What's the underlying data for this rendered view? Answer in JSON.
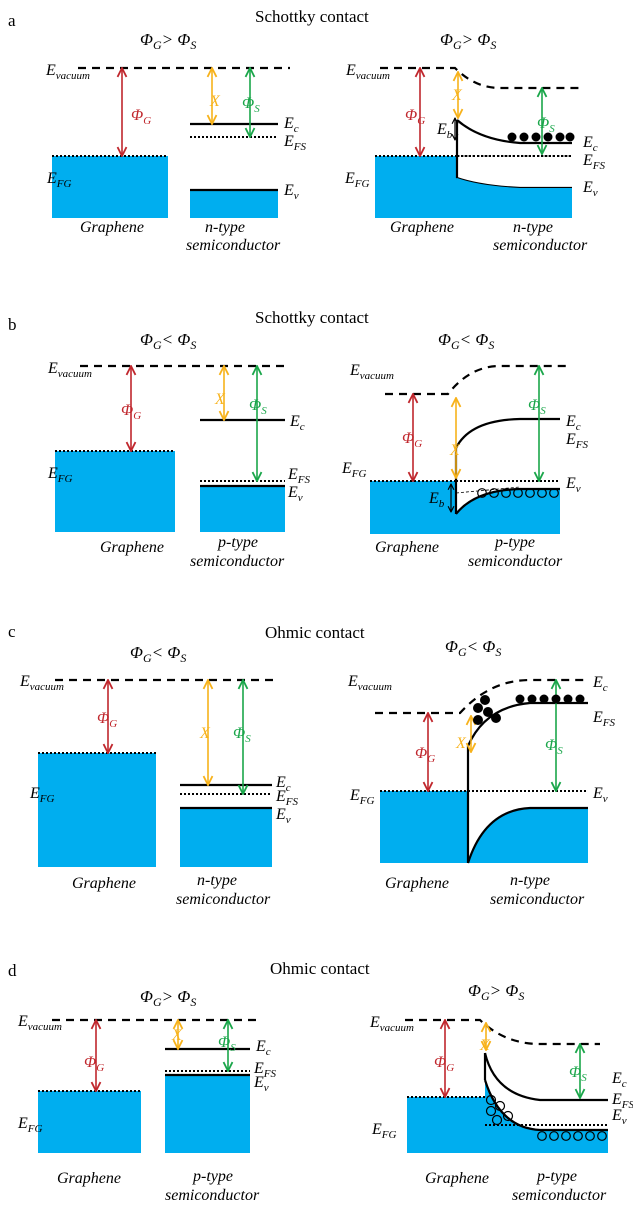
{
  "colors": {
    "band_fill": "#00aeef",
    "phi_g": "#c0272d",
    "chi": "#f7b21b",
    "phi_s": "#1aa64a"
  },
  "labels": {
    "e_vacuum_main": "E",
    "e_vacuum_sub": "vacuum",
    "e_fg_main": "E",
    "e_fg_sub": "FG",
    "e_c_main": "E",
    "e_c_sub": "c",
    "e_fs_main": "E",
    "e_fs_sub": "FS",
    "e_v_main": "E",
    "e_v_sub": "v",
    "e_b_main": "E",
    "e_b_sub": "b",
    "phi_g_main": "Φ",
    "phi_g_sub": "G",
    "phi_s_main": "Φ",
    "phi_s_sub": "S",
    "chi": "X",
    "graphene": "Graphene",
    "semiconductor": "semiconductor",
    "n_type": "n-type",
    "p_type": "p-type"
  },
  "panels": [
    {
      "letter": "a",
      "title": "Schottky contact",
      "left_condition": ">",
      "right_condition": ">"
    },
    {
      "letter": "b",
      "title": "Schottky contact",
      "left_condition": "<",
      "right_condition": "<"
    },
    {
      "letter": "c",
      "title": "Ohmic contact",
      "left_condition": "<",
      "right_condition": "<"
    },
    {
      "letter": "d",
      "title": "Ohmic contact",
      "left_condition": ">",
      "right_condition": ">"
    }
  ]
}
